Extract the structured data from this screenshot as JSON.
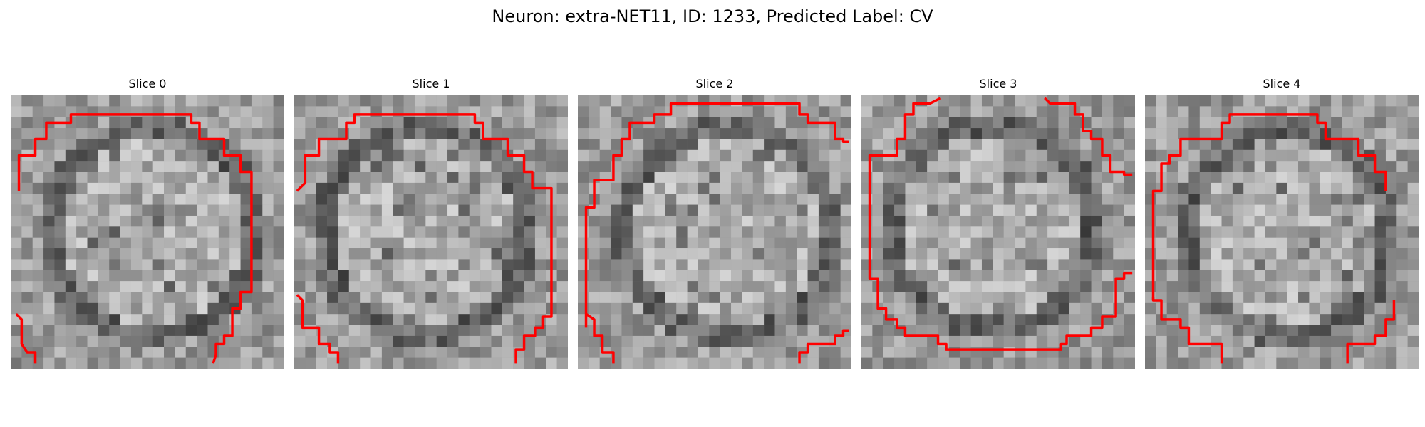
{
  "figure": {
    "title": "Neuron: extra-NET11, ID: 1233, Predicted Label: CV"
  },
  "panels": [
    {
      "title": "Slice 0"
    },
    {
      "title": "Slice 1"
    },
    {
      "title": "Slice 2"
    },
    {
      "title": "Slice 3"
    },
    {
      "title": "Slice 4"
    }
  ],
  "colors": {
    "contour": "#ff0000",
    "background": "#ffffff"
  }
}
